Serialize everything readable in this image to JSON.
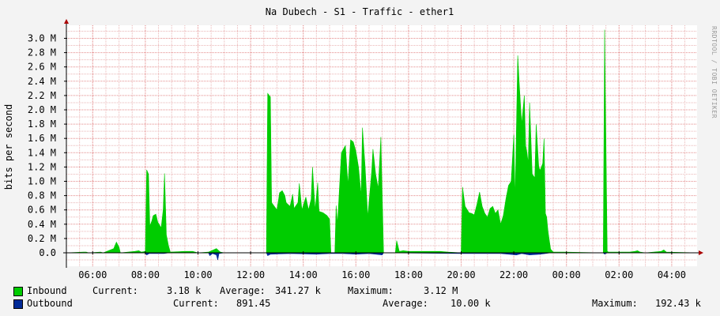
{
  "title": "Na Dubech - S1 - Traffic - ether1",
  "watermark": "RRDTOOL / TOBI OETIKER",
  "legend": {
    "inbound": {
      "name": "Inbound",
      "current_label": "Current:",
      "current_value": "3.18 k",
      "average_label": "Average:",
      "average_value": "341.27 k",
      "maximum_label": "Maximum:",
      "maximum_value": "3.12 M",
      "color": "#00cc00"
    },
    "outbound": {
      "name": "Outbound",
      "current_label": "Current:",
      "current_value": "891.45",
      "average_label": "Average:",
      "average_value": "10.00 k",
      "maximum_label": "Maximum:",
      "maximum_value": "192.43 k",
      "color": "#002a97"
    }
  },
  "chart_data": {
    "type": "area",
    "ylabel": "bits per second",
    "y_ticks": [
      "0.0",
      "0.2 M",
      "0.4 M",
      "0.6 M",
      "0.8 M",
      "1.0 M",
      "1.2 M",
      "1.4 M",
      "1.6 M",
      "1.8 M",
      "2.0 M",
      "2.2 M",
      "2.4 M",
      "2.6 M",
      "2.8 M",
      "3.0 M"
    ],
    "x_ticks": [
      "06:00",
      "08:00",
      "10:00",
      "12:00",
      "14:00",
      "16:00",
      "18:00",
      "20:00",
      "22:00",
      "00:00",
      "02:00",
      "04:00"
    ],
    "ylim": [
      -0.2,
      3.1
    ],
    "x_unit": "hours since 05:00",
    "xlim": [
      0,
      24
    ],
    "grid": true,
    "series": [
      {
        "name": "Inbound",
        "color": "#00cc00",
        "points": [
          [
            0.0,
            0.0
          ],
          [
            0.65,
            0.01
          ],
          [
            0.75,
            0.01
          ],
          [
            0.85,
            0.0
          ],
          [
            1.3,
            0.01
          ],
          [
            1.4,
            0.0
          ],
          [
            1.8,
            0.06
          ],
          [
            1.9,
            0.15
          ],
          [
            2.0,
            0.08
          ],
          [
            2.05,
            0.0
          ],
          [
            2.6,
            0.02
          ],
          [
            2.75,
            0.03
          ],
          [
            2.85,
            0.01
          ],
          [
            3.0,
            0.02
          ],
          [
            3.05,
            1.16
          ],
          [
            3.12,
            1.1
          ],
          [
            3.17,
            0.37
          ],
          [
            3.25,
            0.45
          ],
          [
            3.3,
            0.52
          ],
          [
            3.4,
            0.54
          ],
          [
            3.47,
            0.43
          ],
          [
            3.52,
            0.4
          ],
          [
            3.6,
            0.35
          ],
          [
            3.68,
            0.6
          ],
          [
            3.73,
            1.11
          ],
          [
            3.8,
            0.25
          ],
          [
            3.88,
            0.1
          ],
          [
            3.95,
            0.01
          ],
          [
            4.5,
            0.02
          ],
          [
            4.8,
            0.02
          ],
          [
            5.0,
            0.0
          ],
          [
            5.4,
            0.01
          ],
          [
            5.7,
            0.06
          ],
          [
            5.85,
            0.01
          ],
          [
            6.0,
            0.0
          ],
          [
            7.6,
            0.0
          ],
          [
            7.65,
            2.23
          ],
          [
            7.75,
            2.18
          ],
          [
            7.8,
            0.7
          ],
          [
            7.9,
            0.65
          ],
          [
            8.0,
            0.6
          ],
          [
            8.05,
            0.72
          ],
          [
            8.1,
            0.84
          ],
          [
            8.2,
            0.87
          ],
          [
            8.3,
            0.8
          ],
          [
            8.35,
            0.7
          ],
          [
            8.5,
            0.65
          ],
          [
            8.6,
            0.82
          ],
          [
            8.65,
            0.62
          ],
          [
            8.8,
            0.7
          ],
          [
            8.85,
            0.97
          ],
          [
            8.95,
            0.6
          ],
          [
            9.1,
            0.78
          ],
          [
            9.2,
            0.6
          ],
          [
            9.3,
            0.75
          ],
          [
            9.35,
            1.2
          ],
          [
            9.45,
            0.6
          ],
          [
            9.55,
            0.98
          ],
          [
            9.6,
            0.58
          ],
          [
            9.75,
            0.56
          ],
          [
            9.9,
            0.52
          ],
          [
            10.0,
            0.47
          ],
          [
            10.05,
            0.0
          ],
          [
            10.2,
            0.0
          ],
          [
            10.25,
            0.66
          ],
          [
            10.3,
            0.4
          ],
          [
            10.45,
            1.4
          ],
          [
            10.6,
            1.5
          ],
          [
            10.7,
            0.95
          ],
          [
            10.8,
            1.58
          ],
          [
            10.9,
            1.55
          ],
          [
            11.0,
            1.42
          ],
          [
            11.1,
            1.2
          ],
          [
            11.2,
            0.8
          ],
          [
            11.25,
            1.75
          ],
          [
            11.35,
            1.2
          ],
          [
            11.45,
            0.5
          ],
          [
            11.6,
            1.14
          ],
          [
            11.65,
            1.45
          ],
          [
            11.75,
            1.1
          ],
          [
            11.85,
            0.9
          ],
          [
            11.95,
            1.62
          ],
          [
            12.05,
            0.0
          ],
          [
            12.5,
            0.0
          ],
          [
            12.55,
            0.17
          ],
          [
            12.65,
            0.02
          ],
          [
            12.8,
            0.03
          ],
          [
            13.0,
            0.02
          ],
          [
            13.5,
            0.02
          ],
          [
            14.2,
            0.02
          ],
          [
            14.5,
            0.01
          ],
          [
            15.0,
            0.0
          ],
          [
            15.05,
            0.92
          ],
          [
            15.15,
            0.65
          ],
          [
            15.3,
            0.56
          ],
          [
            15.4,
            0.55
          ],
          [
            15.5,
            0.53
          ],
          [
            15.6,
            0.68
          ],
          [
            15.7,
            0.85
          ],
          [
            15.8,
            0.65
          ],
          [
            15.9,
            0.55
          ],
          [
            16.0,
            0.5
          ],
          [
            16.1,
            0.62
          ],
          [
            16.2,
            0.65
          ],
          [
            16.3,
            0.55
          ],
          [
            16.4,
            0.6
          ],
          [
            16.5,
            0.4
          ],
          [
            16.6,
            0.52
          ],
          [
            16.7,
            0.75
          ],
          [
            16.8,
            0.94
          ],
          [
            16.9,
            1.0
          ],
          [
            17.0,
            1.65
          ],
          [
            17.05,
            0.75
          ],
          [
            17.15,
            2.76
          ],
          [
            17.2,
            2.4
          ],
          [
            17.3,
            1.8
          ],
          [
            17.4,
            2.2
          ],
          [
            17.45,
            1.5
          ],
          [
            17.5,
            1.4
          ],
          [
            17.55,
            1.25
          ],
          [
            17.6,
            2.1
          ],
          [
            17.7,
            1.1
          ],
          [
            17.8,
            1.05
          ],
          [
            17.85,
            1.8
          ],
          [
            17.95,
            1.2
          ],
          [
            18.0,
            1.15
          ],
          [
            18.1,
            1.25
          ],
          [
            18.15,
            1.6
          ],
          [
            18.2,
            0.55
          ],
          [
            18.25,
            0.5
          ],
          [
            18.3,
            0.3
          ],
          [
            18.4,
            0.05
          ],
          [
            18.5,
            0.01
          ],
          [
            18.9,
            0.01
          ],
          [
            20.4,
            0.0
          ],
          [
            20.45,
            3.12
          ],
          [
            20.55,
            0.02
          ],
          [
            20.6,
            0.01
          ],
          [
            21.0,
            0.01
          ],
          [
            21.4,
            0.01
          ],
          [
            21.6,
            0.02
          ],
          [
            21.7,
            0.03
          ],
          [
            21.8,
            0.01
          ],
          [
            22.0,
            0.0
          ],
          [
            22.6,
            0.02
          ],
          [
            22.7,
            0.04
          ],
          [
            22.8,
            0.01
          ],
          [
            24.0,
            0.0
          ]
        ]
      },
      {
        "name": "Outbound",
        "color": "#002a97",
        "points": [
          [
            0.0,
            0.0
          ],
          [
            3.0,
            0.0
          ],
          [
            3.05,
            -0.03
          ],
          [
            3.15,
            -0.01
          ],
          [
            3.7,
            -0.01
          ],
          [
            3.9,
            0.0
          ],
          [
            5.4,
            0.0
          ],
          [
            5.45,
            -0.04
          ],
          [
            5.55,
            -0.01
          ],
          [
            5.7,
            -0.03
          ],
          [
            5.75,
            -0.1
          ],
          [
            5.8,
            -0.01
          ],
          [
            6.0,
            0.0
          ],
          [
            7.6,
            0.0
          ],
          [
            7.65,
            -0.04
          ],
          [
            7.75,
            -0.02
          ],
          [
            8.5,
            -0.01
          ],
          [
            9.5,
            -0.02
          ],
          [
            10.0,
            -0.01
          ],
          [
            10.5,
            -0.01
          ],
          [
            11.0,
            -0.02
          ],
          [
            11.5,
            -0.01
          ],
          [
            12.0,
            -0.03
          ],
          [
            12.05,
            0.0
          ],
          [
            15.05,
            -0.01
          ],
          [
            16.5,
            -0.01
          ],
          [
            17.1,
            -0.03
          ],
          [
            17.3,
            -0.01
          ],
          [
            17.6,
            -0.03
          ],
          [
            18.0,
            -0.02
          ],
          [
            18.2,
            -0.01
          ],
          [
            18.4,
            0.0
          ],
          [
            20.4,
            0.0
          ],
          [
            20.45,
            -0.02
          ],
          [
            20.55,
            0.0
          ],
          [
            24.0,
            0.0
          ]
        ]
      }
    ]
  }
}
